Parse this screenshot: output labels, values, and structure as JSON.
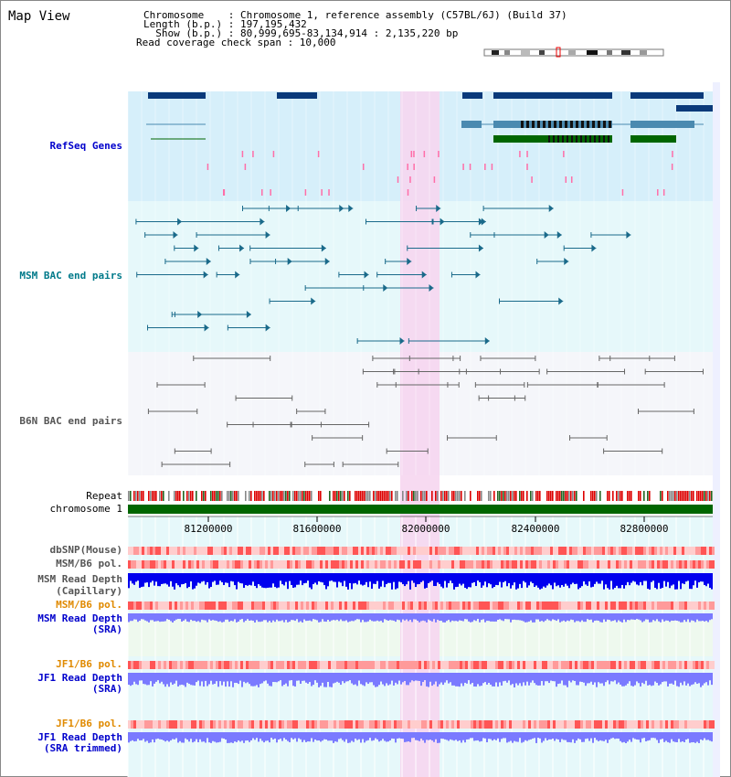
{
  "view_title": "Map View",
  "header": {
    "line1": "Chromosome    : Chromosome 1, reference assembly (C57BL/6J) (Build 37)",
    "line2": "Length (b.p.) : 197,195,432",
    "line3": "  Show (b.p.) : 80,999,695-83,134,914 : 2,135,220 bp",
    "line4": "Read coverage check span : 10,000"
  },
  "tracks": {
    "refseq": "RefSeq Genes",
    "msm_bac": "MSM BAC end pairs",
    "b6n_bac": "B6N BAC end pairs",
    "repeat": "Repeat",
    "chromosome": "chromosome 1",
    "dbsnp": "dbSNP(Mouse)",
    "msm_b6_pol": "MSM/B6 pol.",
    "msm_depth_cap_1": "MSM Read Depth",
    "msm_depth_cap_2": "(Capillary)",
    "msm_b6_pol_2": "MSM/B6 pol.",
    "msm_depth_sra_1": "MSM Read Depth",
    "msm_depth_sra_2": "(SRA)",
    "jf1_b6_pol": "JF1/B6 pol.",
    "jf1_depth_sra_1": "JF1 Read Depth",
    "jf1_depth_sra_2": "(SRA)",
    "jf1_b6_pol_2": "JF1/B6 pol.",
    "jf1_depth_trim_1": "JF1 Read Depth",
    "jf1_depth_trim_2": "(SRA trimmed)"
  },
  "axis_ticks": [
    "81200000",
    "81600000",
    "82000000",
    "82400000",
    "82800000"
  ],
  "colors": {
    "gene_dark": "#0a3a7a",
    "gene_mid": "#4a8ab0",
    "gene_green": "#006600",
    "msm_bac": "#1a6a8a",
    "b6n_bac": "#666666",
    "chromosome": "#006600",
    "highlight": "#f6d6f0",
    "depth_blue": "#0000ee",
    "depth_light": "#7a7aff"
  }
}
